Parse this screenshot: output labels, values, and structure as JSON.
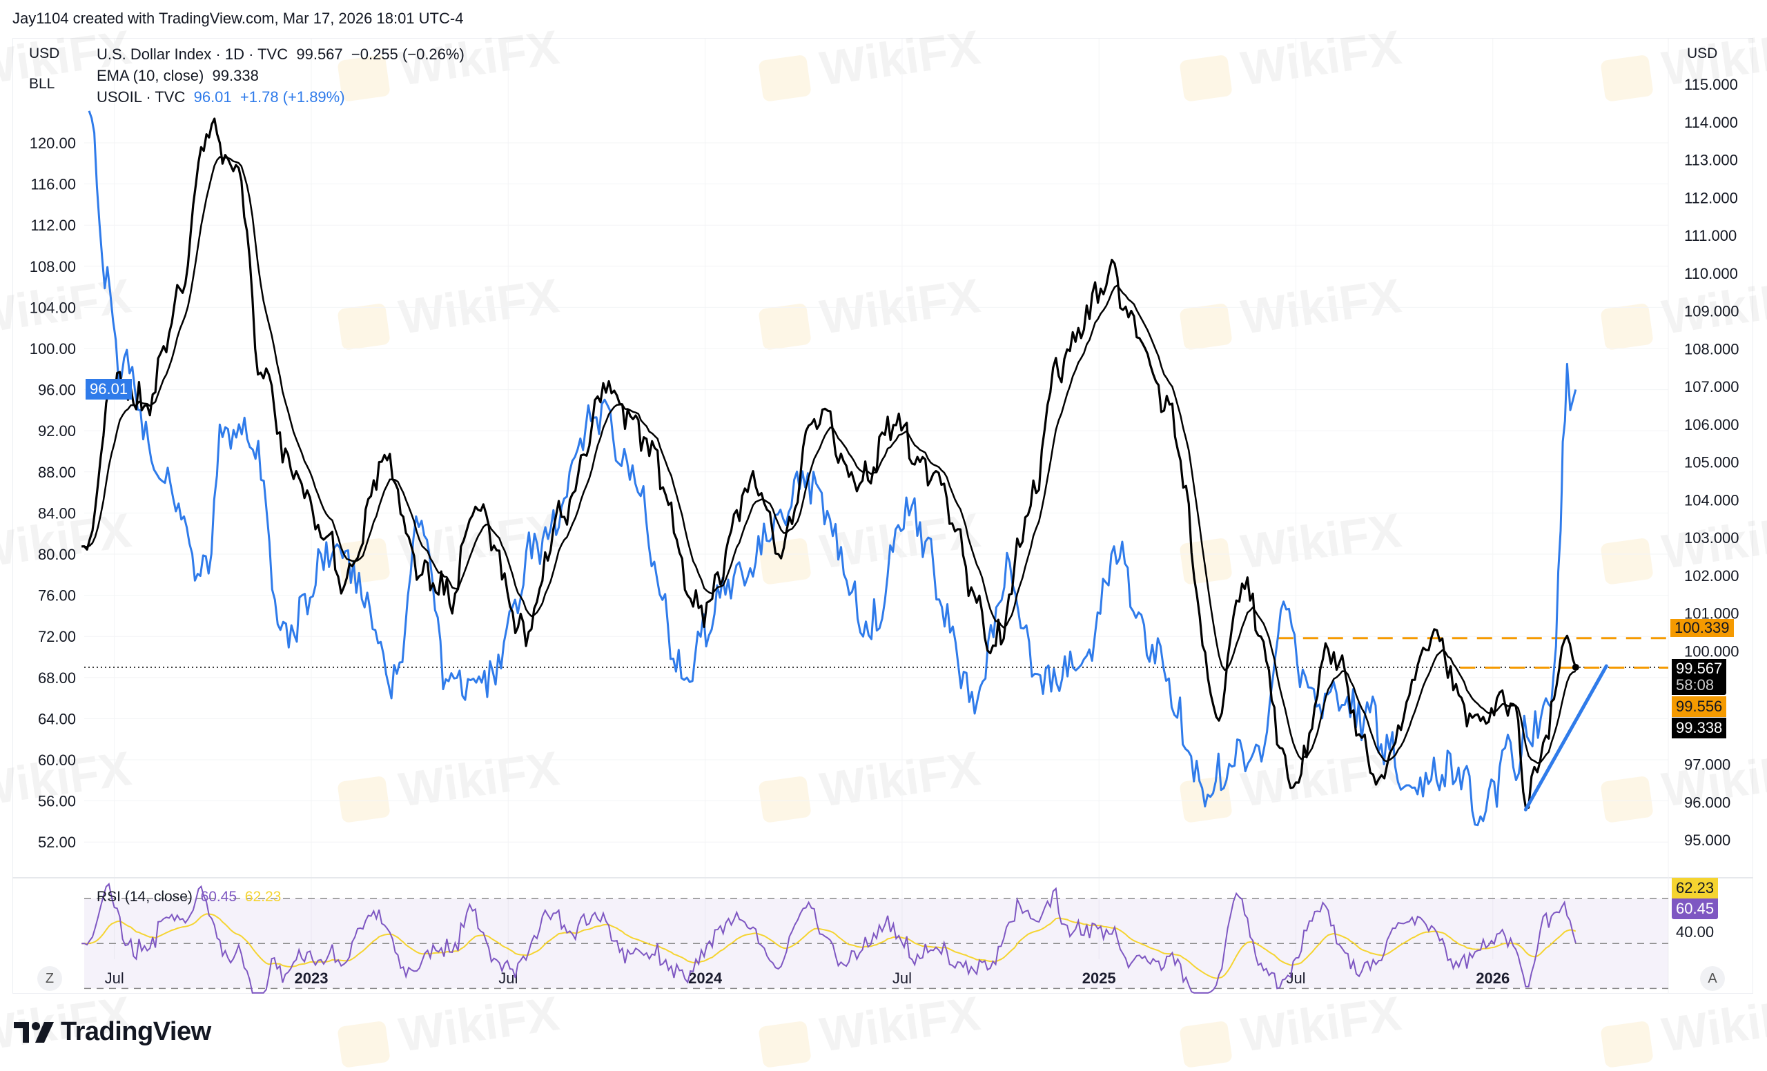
{
  "header": {
    "credit": "Jay1104 created with TradingView.com, Mar 17, 2026 18:01 UTC-4"
  },
  "legend": {
    "dxy": {
      "label": "U.S. Dollar Index · 1D · TVC",
      "value": "99.567",
      "change": "−0.255 (−0.26%)"
    },
    "ema": {
      "label": "EMA (10, close)",
      "value": "99.338"
    },
    "oil": {
      "label": "USOIL · TVC",
      "value": "96.01",
      "change": "+1.78 (+1.89%)"
    },
    "rsi": {
      "label": "RSI (14, close)",
      "value": "60.45",
      "ma": "62.23"
    }
  },
  "left_scale": {
    "currency": "USD",
    "symbol": "BLL",
    "price_tag": "96.01"
  },
  "right_scale": {
    "currency": "USD"
  },
  "price_tags": {
    "line_level": "100.339",
    "last_price": "99.567",
    "countdown": "58:08",
    "level2": "99.556",
    "ema": "99.338",
    "rsi_ma": "62.23",
    "rsi": "60.45",
    "rsi_axis": "40.00"
  },
  "buttons": {
    "auto_scale_left": "Z",
    "auto_scale_right": "A"
  },
  "branding": {
    "logo": "TradingView",
    "watermark": "WikiFX"
  },
  "colors": {
    "dxy": "#000000",
    "ema": "#000000",
    "oil": "#2f7bea",
    "rsi": "#7e57c2",
    "rsi_ma": "#f5d430",
    "level": "#f59a00"
  },
  "chart_data": {
    "type": "line",
    "x_ticks": [
      "Jul",
      "2023",
      "Jul",
      "2024",
      "Jul",
      "2025",
      "Jul",
      "2026"
    ],
    "x_tick_dates": [
      "2022-07-01",
      "2023-01-01",
      "2023-07-01",
      "2024-01-01",
      "2024-07-01",
      "2025-01-01",
      "2025-07-01",
      "2026-01-01"
    ],
    "left_axis": {
      "ticks": [
        "120.00",
        "116.00",
        "112.00",
        "108.00",
        "104.00",
        "100.00",
        "96.00",
        "92.00",
        "88.00",
        "84.00",
        "80.00",
        "76.00",
        "72.00",
        "68.00",
        "64.00",
        "60.00",
        "56.00",
        "52.00"
      ],
      "ylim": [
        50,
        124
      ]
    },
    "right_axis": {
      "ticks": [
        "115.000",
        "114.000",
        "113.000",
        "112.000",
        "111.000",
        "110.000",
        "109.000",
        "108.000",
        "107.000",
        "106.000",
        "105.000",
        "104.000",
        "103.000",
        "102.000",
        "101.000",
        "100.000",
        "97.000",
        "96.000",
        "95.000"
      ],
      "ylim": [
        94,
        115.5
      ]
    },
    "series": [
      {
        "name": "U.S. Dollar Index",
        "axis": "right",
        "points": [
          [
            "2022-06-01",
            102.3
          ],
          [
            "2022-07-01",
            107.1
          ],
          [
            "2022-08-01",
            106.5
          ],
          [
            "2022-09-01",
            109.5
          ],
          [
            "2022-09-28",
            114.0
          ],
          [
            "2022-10-10",
            113.0
          ],
          [
            "2022-10-25",
            112.5
          ],
          [
            "2022-11-15",
            107.4
          ],
          [
            "2022-12-15",
            104.7
          ],
          [
            "2023-01-15",
            103.2
          ],
          [
            "2023-02-01",
            101.8
          ],
          [
            "2023-03-08",
            105.0
          ],
          [
            "2023-04-15",
            101.9
          ],
          [
            "2023-05-10",
            101.5
          ],
          [
            "2023-06-01",
            104.0
          ],
          [
            "2023-07-15",
            100.5
          ],
          [
            "2023-08-20",
            103.5
          ],
          [
            "2023-10-03",
            107.0
          ],
          [
            "2023-11-05",
            105.6
          ],
          [
            "2023-12-28",
            101.1
          ],
          [
            "2024-02-15",
            104.5
          ],
          [
            "2024-03-08",
            102.7
          ],
          [
            "2024-04-16",
            106.4
          ],
          [
            "2024-05-20",
            104.4
          ],
          [
            "2024-06-26",
            106.0
          ],
          [
            "2024-07-30",
            104.5
          ],
          [
            "2024-09-27",
            100.3
          ],
          [
            "2024-11-01",
            104.0
          ],
          [
            "2024-11-22",
            107.5
          ],
          [
            "2025-01-13",
            109.9
          ],
          [
            "2025-02-03",
            108.6
          ],
          [
            "2025-03-03",
            106.5
          ],
          [
            "2025-04-21",
            98.5
          ],
          [
            "2025-05-12",
            101.8
          ],
          [
            "2025-07-01",
            96.5
          ],
          [
            "2025-07-31",
            100.0
          ],
          [
            "2025-09-17",
            96.7
          ],
          [
            "2025-11-05",
            100.3
          ],
          [
            "2025-12-15",
            98.2
          ],
          [
            "2026-01-20",
            98.8
          ],
          [
            "2026-02-01",
            95.8
          ],
          [
            "2026-02-20",
            97.8
          ],
          [
            "2026-03-09",
            100.4
          ],
          [
            "2026-03-17",
            99.567
          ]
        ]
      },
      {
        "name": "EMA (10, close)",
        "axis": "right",
        "derived_from": "U.S. Dollar Index"
      },
      {
        "name": "USOIL",
        "axis": "left",
        "points": [
          [
            "2022-06-08",
            122.0
          ],
          [
            "2022-06-25",
            106.5
          ],
          [
            "2022-07-05",
            99.0
          ],
          [
            "2022-08-15",
            88.0
          ],
          [
            "2022-09-25",
            78.0
          ],
          [
            "2022-10-10",
            92.0
          ],
          [
            "2022-11-05",
            92.5
          ],
          [
            "2022-12-08",
            72.0
          ],
          [
            "2023-01-25",
            81.5
          ],
          [
            "2023-02-20",
            76.0
          ],
          [
            "2023-03-17",
            66.7
          ],
          [
            "2023-04-12",
            83.0
          ],
          [
            "2023-05-04",
            68.5
          ],
          [
            "2023-06-12",
            67.5
          ],
          [
            "2023-07-28",
            80.5
          ],
          [
            "2023-09-27",
            93.7
          ],
          [
            "2023-10-20",
            89.0
          ],
          [
            "2023-12-12",
            68.5
          ],
          [
            "2024-01-25",
            77.5
          ],
          [
            "2024-04-05",
            87.0
          ],
          [
            "2024-06-03",
            73.0
          ],
          [
            "2024-07-05",
            84.0
          ],
          [
            "2024-09-10",
            65.8
          ],
          [
            "2024-10-07",
            77.5
          ],
          [
            "2024-11-10",
            67.5
          ],
          [
            "2024-12-20",
            70.0
          ],
          [
            "2025-01-15",
            80.0
          ],
          [
            "2025-02-20",
            71.0
          ],
          [
            "2025-04-08",
            57.5
          ],
          [
            "2025-05-30",
            61.0
          ],
          [
            "2025-06-20",
            75.0
          ],
          [
            "2025-07-15",
            66.0
          ],
          [
            "2025-09-01",
            64.5
          ],
          [
            "2025-10-20",
            57.8
          ],
          [
            "2025-11-25",
            59.0
          ],
          [
            "2025-12-20",
            55.5
          ],
          [
            "2026-01-20",
            60.5
          ],
          [
            "2026-02-15",
            64.5
          ],
          [
            "2026-02-27",
            67.5
          ],
          [
            "2026-03-03",
            82.0
          ],
          [
            "2026-03-05",
            91.0
          ],
          [
            "2026-03-09",
            98.5
          ],
          [
            "2026-03-12",
            94.0
          ],
          [
            "2026-03-17",
            96.01
          ]
        ]
      },
      {
        "name": "RSI (14, close)",
        "pane": "rsi",
        "derived_from": "U.S. Dollar Index",
        "last": 60.45,
        "ma_last": 62.23,
        "bands": [
          30,
          50,
          70
        ]
      }
    ],
    "horizontal_lines": [
      {
        "value": 100.339,
        "axis": "right",
        "style": "dashed",
        "color": "#f59a00",
        "from": "2025-06-15"
      },
      {
        "value": 99.567,
        "axis": "right",
        "style": "dotted",
        "color": "#000000"
      },
      {
        "value": 99.556,
        "axis": "right",
        "style": "dashed",
        "color": "#f59a00",
        "from": "2025-12-01"
      }
    ],
    "trend_line": {
      "axis": "right",
      "from": [
        "2026-02-01",
        95.8
      ],
      "to": [
        "2026-04-15",
        99.6
      ],
      "color": "#2f7bea"
    }
  }
}
